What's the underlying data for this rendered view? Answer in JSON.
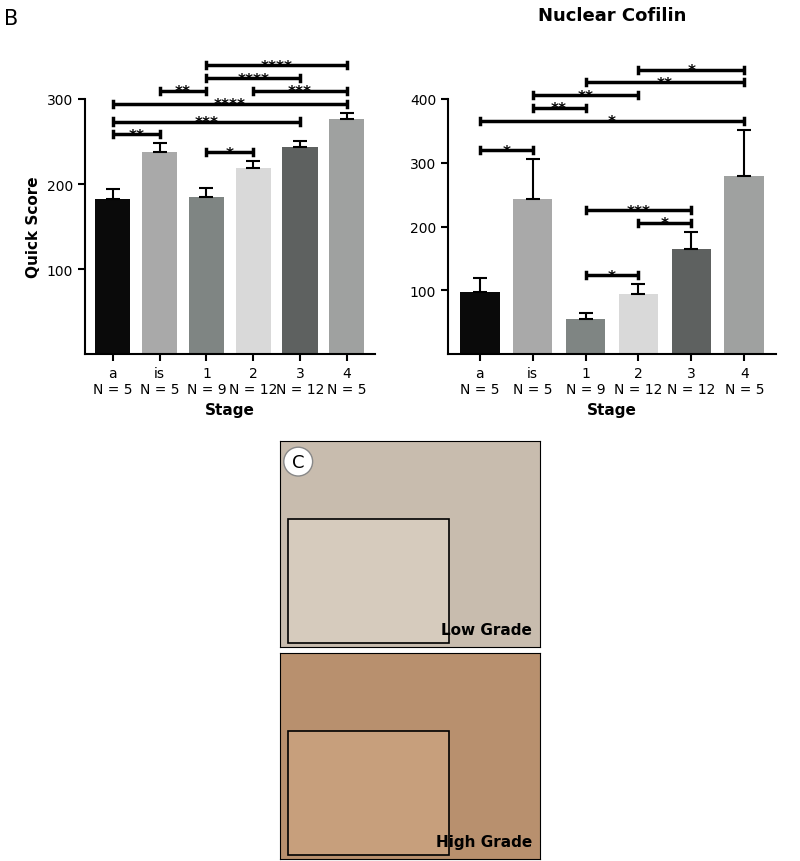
{
  "panel_label": "B",
  "chart_data": [
    {
      "type": "bar",
      "x_label": "Stage",
      "y_label": "Quick Score",
      "categories": [
        "a\nN = 5",
        "is\nN = 5",
        "1\nN = 9",
        "2\nN = 12",
        "3\nN = 12",
        "4\nN = 5"
      ],
      "values": [
        182,
        238,
        185,
        219,
        244,
        276
      ],
      "errors": [
        12,
        10,
        10,
        8,
        7,
        8
      ],
      "colors": [
        "#0a0a0a",
        "#a9a9a9",
        "#7f8583",
        "#d9d9d9",
        "#5e6160",
        "#9fa1a0"
      ],
      "ylim": [
        0,
        300
      ],
      "yticks": [
        100,
        200,
        300
      ],
      "comparisons": [
        {
          "between": [
            "a\nN = 5",
            "is\nN = 5"
          ],
          "label": "**"
        },
        {
          "between": [
            "1\nN = 9",
            "2\nN = 12"
          ],
          "label": "*"
        },
        {
          "between": [
            "a\nN = 5",
            "3\nN = 12"
          ],
          "label": "***"
        },
        {
          "between": [
            "a\nN = 5",
            "4\nN = 5"
          ],
          "label": "****"
        },
        {
          "between": [
            "2\nN = 12",
            "4\nN = 5"
          ],
          "label": "***"
        },
        {
          "between": [
            "is\nN = 5",
            "1\nN = 9"
          ],
          "label": "**"
        },
        {
          "between": [
            "1\nN = 9",
            "3\nN = 12"
          ],
          "label": "****"
        },
        {
          "between": [
            "1\nN = 9",
            "4\nN = 5"
          ],
          "label": "****"
        }
      ]
    },
    {
      "type": "bar",
      "title": "Nuclear Cofilin",
      "x_label": "Stage",
      "categories": [
        "a\nN = 5",
        "is\nN = 5",
        "1\nN = 9",
        "2\nN = 12",
        "3\nN = 12",
        "4\nN = 5"
      ],
      "values": [
        97,
        243,
        55,
        95,
        165,
        280
      ],
      "errors": [
        23,
        63,
        10,
        15,
        27,
        72
      ],
      "colors": [
        "#0a0a0a",
        "#a9a9a9",
        "#7f8583",
        "#d9d9d9",
        "#5e6160",
        "#9fa1a0"
      ],
      "ylim": [
        0,
        400
      ],
      "yticks": [
        100,
        200,
        300,
        400
      ],
      "comparisons": [
        {
          "between": [
            "1\nN = 9",
            "2\nN = 12"
          ],
          "label": "*"
        },
        {
          "between": [
            "2\nN = 12",
            "3\nN = 12"
          ],
          "label": "*"
        },
        {
          "between": [
            "1\nN = 9",
            "3\nN = 12"
          ],
          "label": "***"
        },
        {
          "between": [
            "a\nN = 5",
            "is\nN = 5"
          ],
          "label": "*"
        },
        {
          "between": [
            "a\nN = 5",
            "4\nN = 5"
          ],
          "label": "*"
        },
        {
          "between": [
            "is\nN = 5",
            "1\nN = 9"
          ],
          "label": "**"
        },
        {
          "between": [
            "is\nN = 5",
            "2\nN = 12"
          ],
          "label": "**"
        },
        {
          "between": [
            "1\nN = 9",
            "4\nN = 5"
          ],
          "label": "**"
        },
        {
          "between": [
            "2\nN = 12",
            "4\nN = 5"
          ],
          "label": "*"
        }
      ]
    }
  ],
  "panel_c": {
    "label": "C",
    "images": [
      {
        "caption": "Low Grade"
      },
      {
        "caption": "High Grade"
      }
    ]
  }
}
